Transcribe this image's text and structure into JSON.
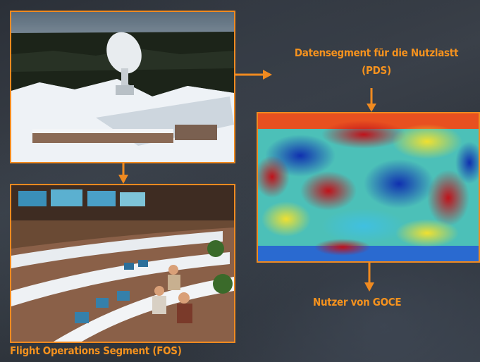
{
  "labels": {
    "pds_line1": "Datensegment für die Nutzlastt",
    "pds_line2": "(PDS)",
    "users": "Nutzer von GOCE",
    "fos": "Flight Operations Segment (FOS)"
  },
  "colors": {
    "accent": "#f5921e",
    "border": "#f08a20"
  },
  "icons": [
    "arrow-right-icon",
    "arrow-down-icon"
  ]
}
